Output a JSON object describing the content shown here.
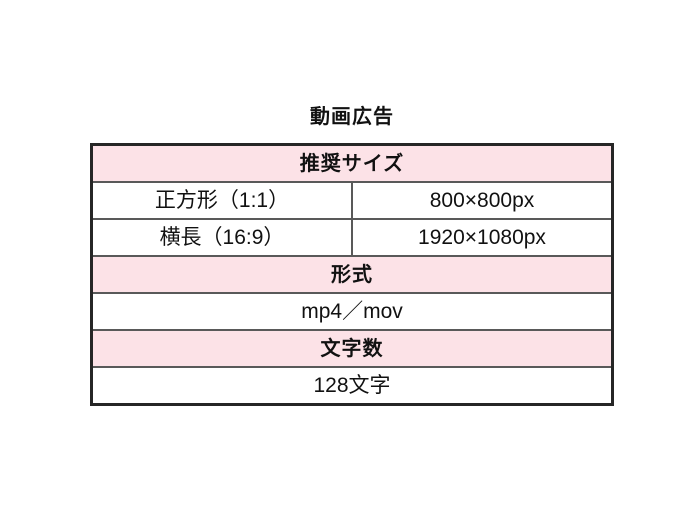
{
  "page_title": "動画広告",
  "colors": {
    "background": "#ffffff",
    "section_header_bg": "#fce2e7",
    "border_outer": "#262626",
    "border_inner": "#595959",
    "text": "#111111"
  },
  "table": {
    "sections": [
      {
        "header": "推奨サイズ",
        "rows": [
          {
            "label": "正方形（1:1）",
            "value": "800×800px"
          },
          {
            "label": "横長（16:9）",
            "value": "1920×1080px"
          }
        ]
      },
      {
        "header": "形式",
        "rows": [
          {
            "value": "mp4／mov"
          }
        ]
      },
      {
        "header": "文字数",
        "rows": [
          {
            "value": "128文字"
          }
        ]
      }
    ]
  }
}
